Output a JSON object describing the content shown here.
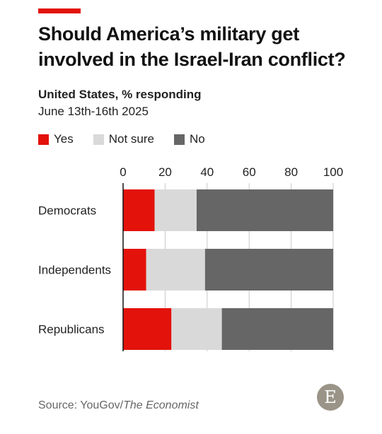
{
  "header": {
    "title": "Should America’s military get involved in the Israel-Iran conflict?",
    "subtitle": "United States, % responding",
    "date": "June 13th-16th 2025"
  },
  "legend": [
    {
      "label": "Yes",
      "color": "#e3120b"
    },
    {
      "label": "Not sure",
      "color": "#d9d9d9"
    },
    {
      "label": "No",
      "color": "#666666"
    }
  ],
  "chart_data": {
    "type": "bar",
    "orientation": "horizontal",
    "stacked": true,
    "categories": [
      "Democrats",
      "Independents",
      "Republicans"
    ],
    "series": [
      {
        "name": "Yes",
        "values": [
          15,
          11,
          23
        ],
        "color": "#e3120b"
      },
      {
        "name": "Not sure",
        "values": [
          20,
          28,
          24
        ],
        "color": "#d9d9d9"
      },
      {
        "name": "No",
        "values": [
          65,
          61,
          53
        ],
        "color": "#666666"
      }
    ],
    "xlim": [
      0,
      100
    ],
    "xticks": [
      0,
      20,
      40,
      60,
      80,
      100
    ],
    "grid": true,
    "legend_position": "top-left"
  },
  "footer": {
    "source_prefix": "Source: YouGov/",
    "source_italic": "The Economist",
    "logo_letter": "E"
  }
}
